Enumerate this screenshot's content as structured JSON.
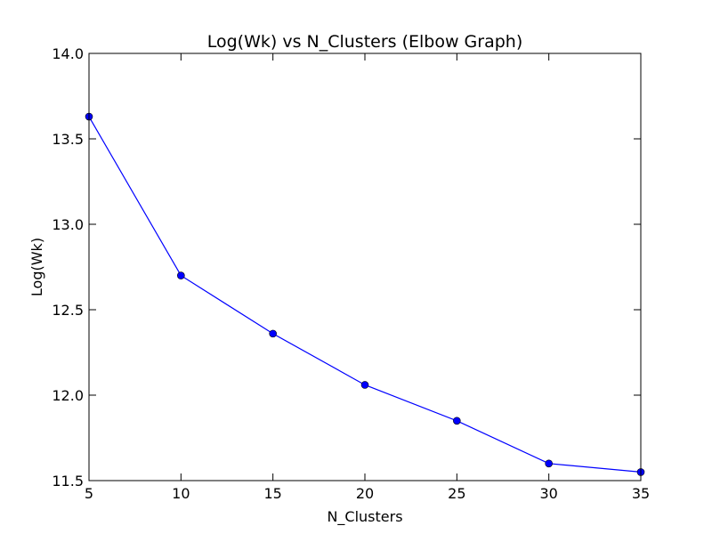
{
  "chart_data": {
    "type": "line",
    "title": "Log(Wk) vs N_Clusters (Elbow Graph)",
    "xlabel": "N_Clusters",
    "ylabel": "Log(Wk)",
    "xlim": [
      5,
      35
    ],
    "ylim": [
      11.5,
      14.0
    ],
    "xticks": [
      "5",
      "10",
      "15",
      "20",
      "25",
      "30",
      "35"
    ],
    "yticks": [
      "11.5",
      "12.0",
      "12.5",
      "13.0",
      "13.5",
      "14.0"
    ],
    "grid": false,
    "series": [
      {
        "x": [
          5,
          10,
          15,
          20,
          25,
          30,
          35
        ],
        "y": [
          13.63,
          12.7,
          12.36,
          12.06,
          11.85,
          11.6,
          11.55
        ],
        "color": "#0000ff",
        "marker": "circle"
      }
    ]
  }
}
